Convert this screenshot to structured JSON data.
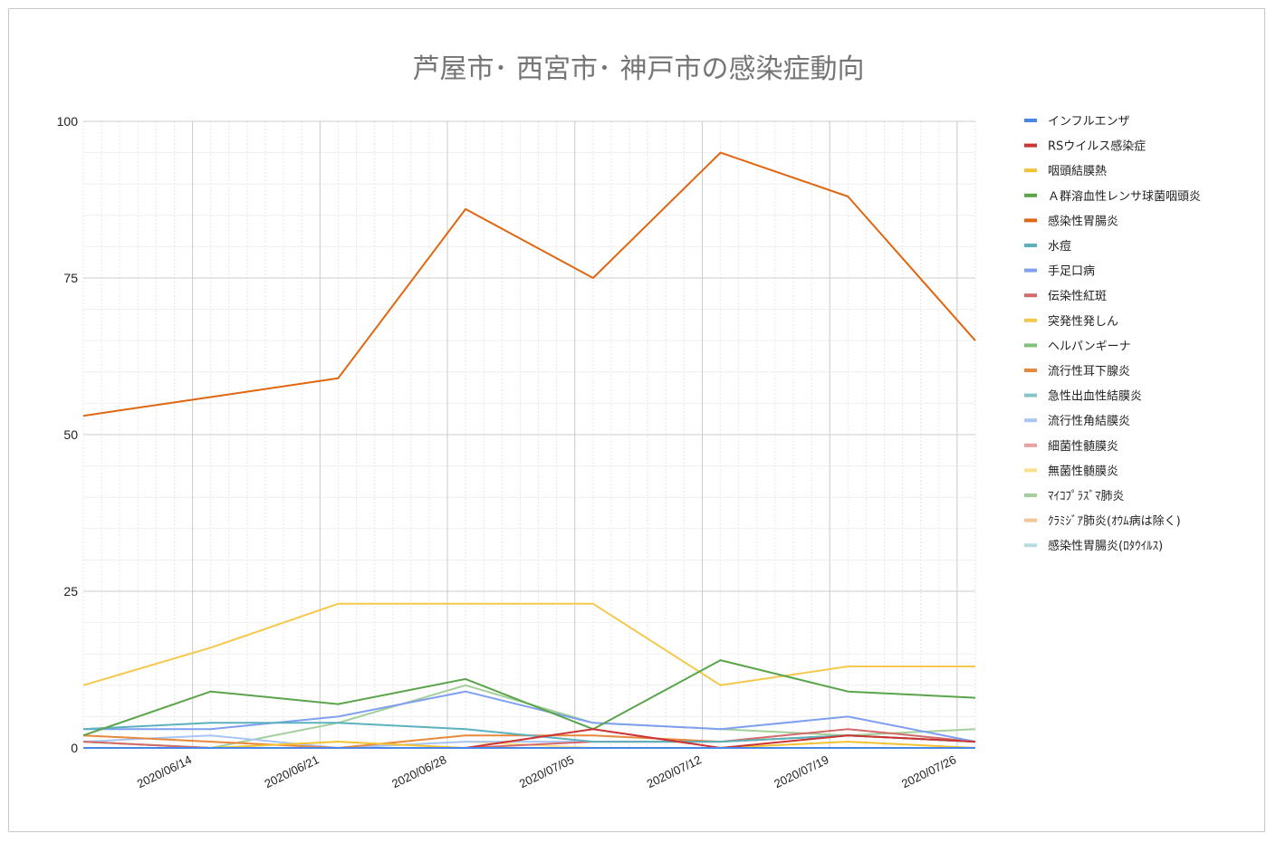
{
  "chart_data": {
    "type": "line",
    "title": "芦屋市･ 西宮市･ 神戸市の感染症動向",
    "xlabel": "",
    "ylabel": "",
    "ylim": [
      0,
      100
    ],
    "yticks": [
      0,
      25,
      50,
      75,
      100
    ],
    "x": [
      "2020/06/08",
      "2020/06/15",
      "2020/06/22",
      "2020/06/29",
      "2020/07/06",
      "2020/07/13",
      "2020/07/20",
      "2020/07/27"
    ],
    "xticks": [
      "2020/06/14",
      "2020/06/21",
      "2020/06/28",
      "2020/07/05",
      "2020/07/12",
      "2020/07/19",
      "2020/07/26"
    ],
    "legend_position": "right",
    "grid": true,
    "series": [
      {
        "name": "インフルエンザ",
        "color": "#4a86e8",
        "values": [
          0,
          0,
          0,
          0,
          0,
          0,
          0,
          0
        ]
      },
      {
        "name": "RSウイルス感染症",
        "color": "#cc3333",
        "values": [
          0,
          0,
          0,
          0,
          3,
          0,
          2,
          1
        ]
      },
      {
        "name": "咽頭結膜熱",
        "color": "#f1c232",
        "values": [
          0,
          0,
          1,
          0,
          0,
          0,
          1,
          0
        ]
      },
      {
        "name": "Ａ群溶血性レンサ球菌咽頭炎",
        "color": "#5aa44a",
        "values": [
          2,
          9,
          7,
          11,
          3,
          14,
          9,
          8
        ]
      },
      {
        "name": "感染性胃腸炎",
        "color": "#e06611",
        "values": [
          53,
          56,
          59,
          86,
          75,
          95,
          88,
          65
        ]
      },
      {
        "name": "水痘",
        "color": "#5bb1bd",
        "values": [
          3,
          4,
          4,
          3,
          1,
          1,
          2,
          1
        ]
      },
      {
        "name": "手足口病",
        "color": "#7f9ff0",
        "values": [
          3,
          3,
          5,
          9,
          4,
          3,
          5,
          1
        ]
      },
      {
        "name": "伝染性紅斑",
        "color": "#d46a6a",
        "values": [
          1,
          0,
          0,
          0,
          1,
          1,
          3,
          1
        ]
      },
      {
        "name": "突発性発しん",
        "color": "#f5c84c",
        "values": [
          10,
          16,
          23,
          23,
          23,
          10,
          13,
          13
        ]
      },
      {
        "name": "ヘルパンギーナ",
        "color": "#7fc07a",
        "values": [
          1,
          0,
          0,
          0,
          0,
          0,
          0,
          0
        ]
      },
      {
        "name": "流行性耳下腺炎",
        "color": "#e8883c",
        "values": [
          2,
          1,
          0,
          2,
          2,
          1,
          2,
          1
        ]
      },
      {
        "name": "急性出血性結膜炎",
        "color": "#86c4c8",
        "values": [
          0,
          0,
          0,
          0,
          0,
          0,
          0,
          0
        ]
      },
      {
        "name": "流行性角結膜炎",
        "color": "#a9c4f5",
        "values": [
          1,
          2,
          0,
          1,
          1,
          1,
          2,
          1
        ]
      },
      {
        "name": "細菌性髄膜炎",
        "color": "#e8a0a0",
        "values": [
          0,
          0,
          0,
          0,
          0,
          0,
          0,
          0
        ]
      },
      {
        "name": "無菌性髄膜炎",
        "color": "#fae08a",
        "values": [
          0,
          0,
          0,
          1,
          0,
          0,
          0,
          0
        ]
      },
      {
        "name": "ﾏｲｺﾌﾟﾗｽﾞﾏ肺炎",
        "color": "#a3cf9a",
        "values": [
          1,
          0,
          4,
          10,
          4,
          3,
          2,
          3
        ]
      },
      {
        "name": "ｸﾗﾐｼﾞｱ肺炎(ｵｳﾑ病は除く)",
        "color": "#f3c494",
        "values": [
          0,
          0,
          0,
          0,
          0,
          0,
          0,
          0
        ]
      },
      {
        "name": "感染性胃腸炎(ﾛﾀｳｲﾙｽ)",
        "color": "#b5dde0",
        "values": [
          0,
          0,
          0,
          0,
          0,
          0,
          0,
          0
        ]
      }
    ]
  }
}
